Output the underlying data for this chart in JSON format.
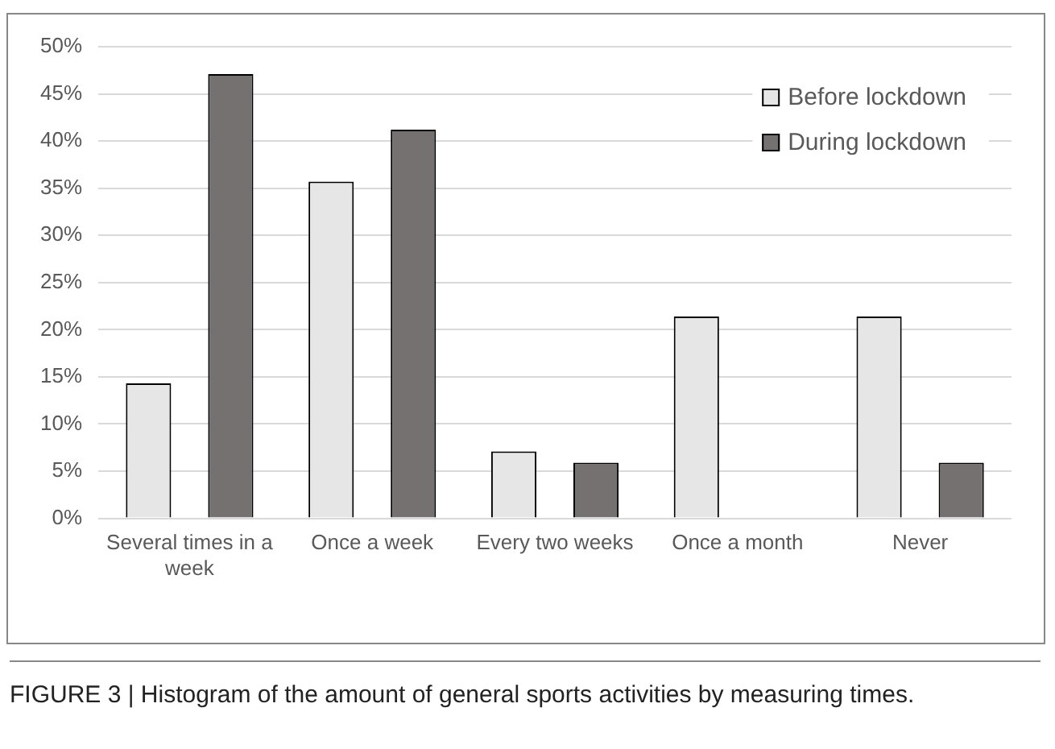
{
  "chart_data": {
    "type": "bar",
    "categories": [
      "Several times in a week",
      "Once a week",
      "Every two weeks",
      "Once a month",
      "Never"
    ],
    "series": [
      {
        "name": "Before lockdown",
        "color": "#e6e6e6",
        "values": [
          14.3,
          35.7,
          7.1,
          21.4,
          21.4
        ]
      },
      {
        "name": "During lockdown",
        "color": "#767171",
        "values": [
          47.1,
          41.2,
          5.9,
          0,
          5.9
        ]
      }
    ],
    "ylim": [
      0,
      50
    ],
    "yticks": [
      {
        "value": 0,
        "label": "0%"
      },
      {
        "value": 5,
        "label": "5%"
      },
      {
        "value": 10,
        "label": "10%"
      },
      {
        "value": 15,
        "label": "15%"
      },
      {
        "value": 20,
        "label": "20%"
      },
      {
        "value": 25,
        "label": "25%"
      },
      {
        "value": 30,
        "label": "30%"
      },
      {
        "value": 35,
        "label": "35%"
      },
      {
        "value": 40,
        "label": "40%"
      },
      {
        "value": 45,
        "label": "45%"
      },
      {
        "value": 50,
        "label": "50%"
      }
    ],
    "grid": "y",
    "legend": "top right",
    "annotations": [
      "FIGURE 3 | Histogram of the amount of general sports activities by measuring times."
    ]
  }
}
